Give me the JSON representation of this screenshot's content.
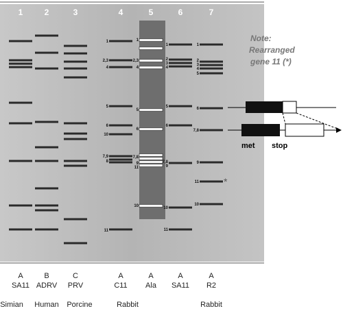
{
  "lanes": [
    {
      "number": "1",
      "group": "A",
      "strain": "SA11"
    },
    {
      "number": "2",
      "group": "B",
      "strain": "ADRV"
    },
    {
      "number": "3",
      "group": "C",
      "strain": "PRV"
    },
    {
      "number": "4",
      "group": "A",
      "strain": "C11",
      "band_labels": [
        "1",
        "2,3",
        "4",
        "5",
        "6",
        "10",
        "7,9",
        "8",
        "11"
      ]
    },
    {
      "number": "5",
      "group": "A",
      "strain": "Ala",
      "band_labels": [
        "1",
        "2,3",
        "4",
        "5",
        "6",
        "7,8",
        "9",
        "11",
        "10"
      ]
    },
    {
      "number": "6",
      "group": "A",
      "strain": "SA11",
      "band_labels": [
        "1",
        "2",
        "3",
        "4",
        "5",
        "6",
        "7,8",
        "9",
        "10",
        "11"
      ]
    },
    {
      "number": "7",
      "group": "A",
      "strain": "R2",
      "band_labels": [
        "1",
        "2",
        "3",
        "4",
        "5",
        "6",
        "7,8",
        "9",
        "11",
        "10"
      ]
    }
  ],
  "hosts": [
    "Simian",
    "Human",
    "Porcine",
    "Rabbit",
    "Rabbit"
  ],
  "rearranged_marker": "*",
  "note": [
    "Note:",
    "Rearranged",
    "gene 11 (*)"
  ],
  "diagram": {
    "start_label": "met",
    "stop_label": "stop"
  }
}
